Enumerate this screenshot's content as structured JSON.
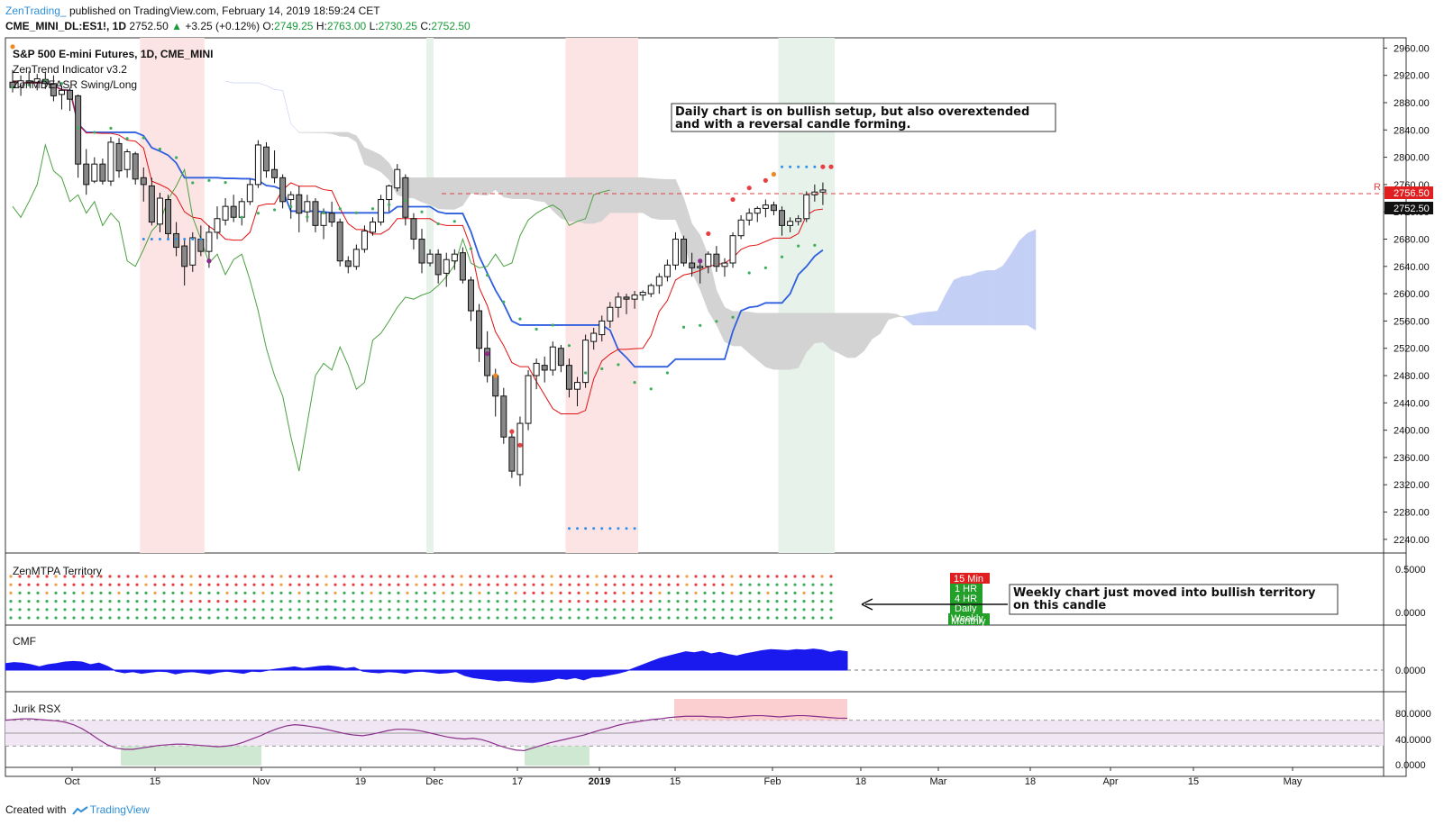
{
  "header": {
    "author": "ZenTrading_",
    "published": "published on TradingView.com, February 14, 2019 18:59:24 CET",
    "symbol": "CME_MINI_DL:ES1!, 1D",
    "last": "2752.50",
    "change": "+3.25 (+0.12%)",
    "open_label": "O:",
    "open": "2749.25",
    "high_label": "H:",
    "high": "2763.00",
    "low_label": "L:",
    "low": "2730.25",
    "close_label": "C:",
    "close": "2752.50"
  },
  "main_pane": {
    "title": "S&P 500 E-mini Futures, 1D, CME_MINI",
    "indicator1": "ZenTrend Indicator v3.2",
    "indicator2": "ZenMDEASR Swing/Long",
    "annotation_line1": "Daily chart is on bullish setup, but also overextended",
    "annotation_line2": "and with a reversal candle forming.",
    "resistance_marker": "R",
    "price_tag_red": "2756.50",
    "price_tag_black": "2752.50"
  },
  "territory_pane": {
    "title": "ZenMTPA Territory",
    "timeframes": [
      "15 Min",
      "1 HR",
      "4 HR",
      "Daily",
      "Weekly",
      "Monthly"
    ],
    "annotation_line1": "Weekly chart just moved into bullish territory",
    "annotation_line2": "on this candle"
  },
  "cmf_pane": {
    "title": "CMF"
  },
  "rsx_pane": {
    "title": "Jurik RSX"
  },
  "footer": {
    "created_with": "Created with",
    "brand": "TradingView"
  },
  "colors": {
    "bull_band": "#e6f2ea",
    "bear_band": "#fde4e4",
    "kijun": "#2f5fde",
    "tenkan": "#e01010",
    "lagging": "#4aa040",
    "cloud_bull": "#c4cff5",
    "cloud_bear": "#d3d3d3",
    "cmf_fill": "#1a1aee",
    "rsx_line": "#8a2f8a",
    "dot_red": "#e84040",
    "dot_green": "#3fae5c",
    "dot_blue": "#2f8fe8"
  },
  "chart_data": [
    {
      "type": "candlestick",
      "title": "S&P 500 E-mini Futures, 1D, CME_MINI",
      "x_ticks": [
        "Oct",
        "15",
        "Nov",
        "19",
        "Dec",
        "17",
        "2019",
        "15",
        "Feb",
        "18",
        "Mar",
        "18",
        "Apr",
        "15",
        "May"
      ],
      "y_ticks": [
        2240,
        2280,
        2320,
        2360,
        2400,
        2440,
        2480,
        2520,
        2560,
        2600,
        2640,
        2680,
        2720,
        2760,
        2800,
        2840,
        2880,
        2920,
        2960
      ],
      "ylim": [
        2220,
        2975
      ],
      "last_close": 2752.5,
      "resistance_level": 2756.5,
      "candles": [
        [
          2910,
          2928,
          2895,
          2902
        ],
        [
          2903,
          2920,
          2890,
          2912
        ],
        [
          2912,
          2926,
          2905,
          2910
        ],
        [
          2910,
          2922,
          2898,
          2915
        ],
        [
          2914,
          2925,
          2900,
          2908
        ],
        [
          2908,
          2920,
          2882,
          2890
        ],
        [
          2892,
          2905,
          2870,
          2898
        ],
        [
          2898,
          2902,
          2868,
          2885
        ],
        [
          2890,
          2892,
          2770,
          2790
        ],
        [
          2790,
          2812,
          2745,
          2760
        ],
        [
          2765,
          2800,
          2762,
          2790
        ],
        [
          2790,
          2798,
          2760,
          2765
        ],
        [
          2765,
          2830,
          2758,
          2822
        ],
        [
          2820,
          2828,
          2770,
          2780
        ],
        [
          2782,
          2812,
          2770,
          2808
        ],
        [
          2805,
          2808,
          2760,
          2768
        ],
        [
          2770,
          2785,
          2735,
          2760
        ],
        [
          2758,
          2770,
          2700,
          2705
        ],
        [
          2702,
          2748,
          2690,
          2740
        ],
        [
          2738,
          2745,
          2678,
          2688
        ],
        [
          2688,
          2705,
          2655,
          2668
        ],
        [
          2670,
          2680,
          2612,
          2640
        ],
        [
          2642,
          2690,
          2632,
          2682
        ],
        [
          2680,
          2700,
          2655,
          2662
        ],
        [
          2662,
          2700,
          2638,
          2690
        ],
        [
          2690,
          2728,
          2680,
          2710
        ],
        [
          2708,
          2740,
          2700,
          2728
        ],
        [
          2728,
          2745,
          2705,
          2712
        ],
        [
          2712,
          2740,
          2700,
          2735
        ],
        [
          2735,
          2768,
          2730,
          2760
        ],
        [
          2760,
          2825,
          2755,
          2818
        ],
        [
          2815,
          2822,
          2770,
          2780
        ],
        [
          2782,
          2810,
          2762,
          2770
        ],
        [
          2770,
          2775,
          2725,
          2735
        ],
        [
          2738,
          2750,
          2710,
          2745
        ],
        [
          2745,
          2758,
          2690,
          2718
        ],
        [
          2720,
          2745,
          2705,
          2735
        ],
        [
          2735,
          2740,
          2690,
          2700
        ],
        [
          2700,
          2725,
          2680,
          2718
        ],
        [
          2718,
          2735,
          2698,
          2705
        ],
        [
          2705,
          2710,
          2640,
          2648
        ],
        [
          2648,
          2655,
          2630,
          2640
        ],
        [
          2640,
          2672,
          2635,
          2665
        ],
        [
          2665,
          2700,
          2660,
          2692
        ],
        [
          2690,
          2712,
          2685,
          2705
        ],
        [
          2705,
          2745,
          2700,
          2738
        ],
        [
          2738,
          2760,
          2720,
          2758
        ],
        [
          2755,
          2790,
          2750,
          2782
        ],
        [
          2770,
          2775,
          2700,
          2712
        ],
        [
          2710,
          2718,
          2665,
          2680
        ],
        [
          2680,
          2695,
          2630,
          2645
        ],
        [
          2645,
          2665,
          2640,
          2658
        ],
        [
          2658,
          2665,
          2615,
          2628
        ],
        [
          2630,
          2660,
          2610,
          2650
        ],
        [
          2648,
          2665,
          2635,
          2658
        ],
        [
          2660,
          2668,
          2615,
          2620
        ],
        [
          2620,
          2625,
          2560,
          2575
        ],
        [
          2575,
          2585,
          2500,
          2520
        ],
        [
          2520,
          2545,
          2470,
          2480
        ],
        [
          2480,
          2490,
          2420,
          2450
        ],
        [
          2450,
          2462,
          2380,
          2390
        ],
        [
          2390,
          2398,
          2330,
          2340
        ],
        [
          2335,
          2420,
          2318,
          2410
        ],
        [
          2410,
          2488,
          2400,
          2480
        ],
        [
          2480,
          2505,
          2460,
          2498
        ],
        [
          2495,
          2508,
          2470,
          2488
        ],
        [
          2488,
          2530,
          2480,
          2522
        ],
        [
          2520,
          2525,
          2485,
          2495
        ],
        [
          2495,
          2505,
          2448,
          2460
        ],
        [
          2460,
          2478,
          2435,
          2470
        ],
        [
          2470,
          2540,
          2462,
          2532
        ],
        [
          2530,
          2550,
          2518,
          2542
        ],
        [
          2540,
          2568,
          2530,
          2560
        ],
        [
          2560,
          2588,
          2550,
          2580
        ],
        [
          2580,
          2602,
          2565,
          2595
        ],
        [
          2595,
          2600,
          2570,
          2592
        ],
        [
          2592,
          2604,
          2578,
          2598
        ],
        [
          2598,
          2605,
          2590,
          2602
        ],
        [
          2600,
          2615,
          2595,
          2612
        ],
        [
          2612,
          2630,
          2600,
          2625
        ],
        [
          2625,
          2650,
          2618,
          2642
        ],
        [
          2642,
          2690,
          2635,
          2680
        ],
        [
          2680,
          2685,
          2640,
          2645
        ],
        [
          2645,
          2660,
          2625,
          2638
        ],
        [
          2638,
          2650,
          2615,
          2640
        ],
        [
          2640,
          2662,
          2630,
          2658
        ],
        [
          2658,
          2670,
          2632,
          2640
        ],
        [
          2640,
          2652,
          2625,
          2645
        ],
        [
          2645,
          2690,
          2638,
          2685
        ],
        [
          2685,
          2715,
          2680,
          2708
        ],
        [
          2708,
          2725,
          2700,
          2718
        ],
        [
          2718,
          2728,
          2705,
          2725
        ],
        [
          2725,
          2738,
          2712,
          2730
        ],
        [
          2730,
          2735,
          2715,
          2722
        ],
        [
          2722,
          2728,
          2685,
          2700
        ],
        [
          2700,
          2712,
          2690,
          2706
        ],
        [
          2706,
          2715,
          2700,
          2710
        ],
        [
          2710,
          2750,
          2705,
          2745
        ],
        [
          2745,
          2760,
          2735,
          2749
        ],
        [
          2749,
          2763,
          2730,
          2752
        ]
      ]
    },
    {
      "type": "dot_grid",
      "title": "ZenMTPA Territory",
      "rows": [
        "Monthly",
        "Weekly",
        "Daily",
        "4 HR",
        "1 HR",
        "15 Min"
      ],
      "y_ticks": [
        "0.5000",
        "0.0000"
      ]
    },
    {
      "type": "area",
      "title": "CMF",
      "y_ticks": [
        "0.0000"
      ],
      "values": [
        0.12,
        0.14,
        0.13,
        0.1,
        0.06,
        0.1,
        0.12,
        0.15,
        0.16,
        0.15,
        0.1,
        0.13,
        0.07,
        -0.02,
        -0.05,
        -0.03,
        -0.06,
        -0.04,
        -0.02,
        -0.03,
        -0.07,
        -0.04,
        -0.03,
        -0.05,
        -0.07,
        -0.04,
        -0.02,
        -0.04,
        -0.06,
        -0.02,
        -0.03,
        0.0,
        0.02,
        0.04,
        0.06,
        0.03,
        0.05,
        0.07,
        0.08,
        0.06,
        0.03,
        0.05,
        -0.02,
        -0.04,
        -0.05,
        -0.03,
        -0.04,
        -0.06,
        -0.03,
        -0.02,
        -0.04,
        -0.06,
        -0.05,
        -0.03,
        -0.1,
        -0.14,
        -0.16,
        -0.18,
        -0.2,
        -0.19,
        -0.21,
        -0.22,
        -0.23,
        -0.21,
        -0.19,
        -0.15,
        -0.17,
        -0.14,
        -0.18,
        -0.13,
        -0.12,
        -0.09,
        -0.06,
        -0.02,
        0.04,
        0.1,
        0.16,
        0.22,
        0.26,
        0.3,
        0.34,
        0.32,
        0.35,
        0.3,
        0.33,
        0.29,
        0.26,
        0.3,
        0.33,
        0.36,
        0.38,
        0.37,
        0.36,
        0.38,
        0.37,
        0.39,
        0.37,
        0.33,
        0.36,
        0.34
      ]
    },
    {
      "type": "line",
      "title": "Jurik RSX",
      "y_ticks": [
        "80.0000",
        "40.0000",
        "0.0000"
      ],
      "ylim": [
        0,
        100
      ],
      "bands": [
        70,
        30
      ],
      "values": [
        70,
        71,
        72,
        72,
        71,
        70,
        69,
        67,
        63,
        57,
        49,
        40,
        32,
        27,
        25,
        25,
        27,
        29,
        31,
        32,
        33,
        33,
        32,
        31,
        30,
        29,
        30,
        32,
        36,
        41,
        46,
        52,
        57,
        61,
        63,
        62,
        60,
        58,
        55,
        52,
        49,
        47,
        46,
        48,
        51,
        54,
        56,
        56,
        55,
        53,
        50,
        47,
        44,
        42,
        41,
        42,
        40,
        36,
        31,
        27,
        24,
        23,
        27,
        31,
        35,
        38,
        41,
        44,
        47,
        51,
        55,
        58,
        62,
        65,
        67,
        69,
        71,
        72,
        74,
        75,
        76,
        76,
        76,
        75,
        75,
        74,
        75,
        76,
        77,
        77,
        76,
        75,
        76,
        77,
        77,
        76,
        75,
        74,
        73,
        73
      ]
    }
  ]
}
